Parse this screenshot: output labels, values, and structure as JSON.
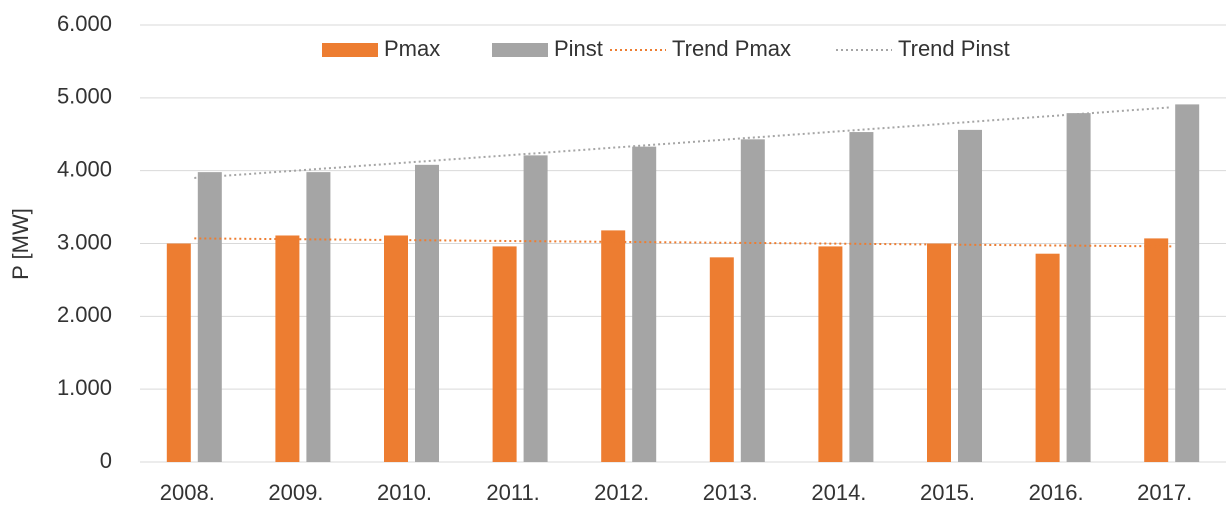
{
  "chart_data": {
    "type": "bar",
    "y_label": "P [MW]",
    "categories": [
      "2008.",
      "2009.",
      "2010.",
      "2011.",
      "2012.",
      "2013.",
      "2014.",
      "2015.",
      "2016.",
      "2017."
    ],
    "series": [
      {
        "name": "Pmax",
        "color": "#ed7d31",
        "kind": "bar",
        "values": [
          3000,
          3110,
          3110,
          2960,
          3180,
          2810,
          2960,
          3000,
          2860,
          3070
        ]
      },
      {
        "name": "Pinst",
        "color": "#a5a5a5",
        "kind": "bar",
        "values": [
          3980,
          3980,
          4080,
          4210,
          4330,
          4430,
          4530,
          4560,
          4790,
          4910
        ]
      },
      {
        "name": "Trend Pmax",
        "color": "#ed7d31",
        "kind": "trend",
        "values": [
          3070,
          3058,
          3046,
          3033,
          3021,
          3009,
          2997,
          2984,
          2972,
          2960
        ]
      },
      {
        "name": "Trend Pinst",
        "color": "#a5a5a5",
        "kind": "trend",
        "values": [
          3900,
          4008,
          4116,
          4223,
          4331,
          4439,
          4547,
          4654,
          4762,
          4870
        ]
      }
    ],
    "ylim": [
      0,
      6000
    ],
    "yticks": [
      0,
      {
        "value": 1000,
        "label": "1.000"
      },
      {
        "value": 2000,
        "label": "2.000"
      },
      {
        "value": 3000,
        "label": "3.000"
      },
      {
        "value": 4000,
        "label": "4.000"
      },
      {
        "value": 5000,
        "label": "5.000"
      },
      {
        "value": 6000,
        "label": "6.000"
      }
    ],
    "grid": true,
    "legend": "top"
  }
}
